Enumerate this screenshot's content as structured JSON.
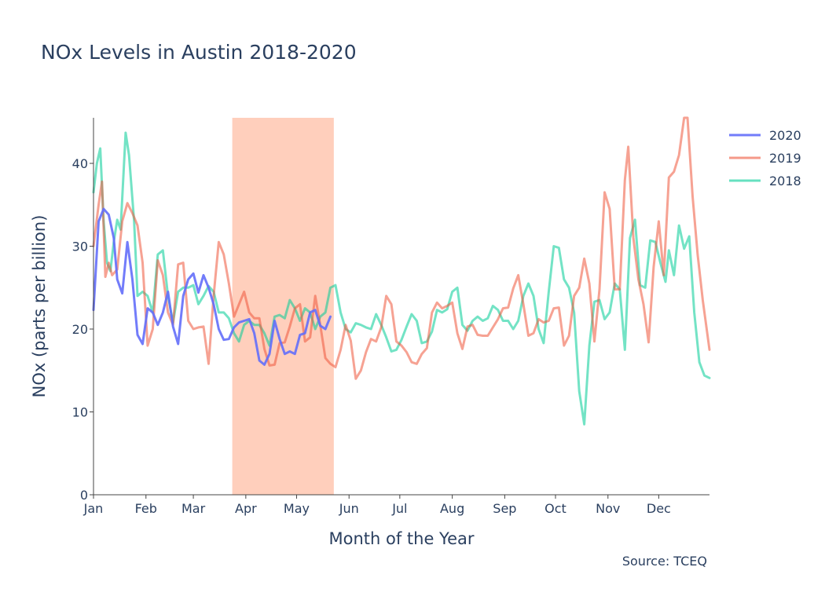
{
  "chart_data": {
    "type": "line",
    "title": "NOx Levels in Austin 2018-2020",
    "xlabel": "Month of the Year",
    "ylabel": "NOx (parts per billion)",
    "source": "Source: TCEQ",
    "x_unit": "day of year",
    "xlim": [
      1,
      365
    ],
    "ylim": [
      0,
      45.5
    ],
    "y_ticks": [
      0,
      10,
      20,
      30,
      40
    ],
    "x_ticks": [
      {
        "label": "Jan",
        "day": 1
      },
      {
        "label": "Feb",
        "day": 32
      },
      {
        "label": "Mar",
        "day": 60
      },
      {
        "label": "Apr",
        "day": 91
      },
      {
        "label": "May",
        "day": 121
      },
      {
        "label": "Jun",
        "day": 152
      },
      {
        "label": "Jul",
        "day": 182
      },
      {
        "label": "Aug",
        "day": 213
      },
      {
        "label": "Sep",
        "day": 244
      },
      {
        "label": "Oct",
        "day": 274
      },
      {
        "label": "Nov",
        "day": 305
      },
      {
        "label": "Dec",
        "day": 335
      }
    ],
    "highlight": {
      "from_day": 83,
      "to_day": 143,
      "color": "#FFA07A"
    },
    "legend_position": "top-right",
    "grid": false,
    "series": [
      {
        "name": "2020",
        "color": "#636EFA",
        "points": [
          [
            1,
            22.3
          ],
          [
            4,
            33.0
          ],
          [
            7,
            34.5
          ],
          [
            10,
            33.8
          ],
          [
            13,
            31.0
          ],
          [
            15,
            26.0
          ],
          [
            18,
            24.3
          ],
          [
            21,
            30.5
          ],
          [
            24,
            26.0
          ],
          [
            27,
            19.3
          ],
          [
            30,
            18.2
          ],
          [
            33,
            22.5
          ],
          [
            36,
            22.0
          ],
          [
            39,
            20.5
          ],
          [
            42,
            22.0
          ],
          [
            45,
            24.5
          ],
          [
            48,
            20.3
          ],
          [
            51,
            18.2
          ],
          [
            54,
            24.0
          ],
          [
            57,
            26.0
          ],
          [
            60,
            26.7
          ],
          [
            63,
            24.4
          ],
          [
            66,
            26.5
          ],
          [
            69,
            25.0
          ],
          [
            72,
            23.0
          ],
          [
            75,
            20.0
          ],
          [
            78,
            18.7
          ],
          [
            81,
            18.8
          ],
          [
            84,
            20.2
          ],
          [
            87,
            20.8
          ],
          [
            90,
            21.0
          ],
          [
            93,
            21.2
          ],
          [
            96,
            19.5
          ],
          [
            99,
            16.2
          ],
          [
            102,
            15.7
          ],
          [
            105,
            17.0
          ],
          [
            108,
            21.0
          ],
          [
            111,
            18.8
          ],
          [
            114,
            17.0
          ],
          [
            117,
            17.3
          ],
          [
            120,
            17.0
          ],
          [
            123,
            19.3
          ],
          [
            126,
            19.5
          ],
          [
            129,
            22.0
          ],
          [
            132,
            22.3
          ],
          [
            135,
            20.4
          ],
          [
            138,
            20.0
          ],
          [
            141,
            21.5
          ]
        ]
      },
      {
        "name": "2019",
        "color": "#EF553B",
        "points": [
          [
            1,
            30.0
          ],
          [
            4,
            35.0
          ],
          [
            6,
            37.8
          ],
          [
            8,
            26.3
          ],
          [
            10,
            28.0
          ],
          [
            12,
            26.5
          ],
          [
            15,
            27.2
          ],
          [
            18,
            33.0
          ],
          [
            21,
            35.2
          ],
          [
            24,
            34.0
          ],
          [
            27,
            32.5
          ],
          [
            30,
            28.0
          ],
          [
            33,
            18.0
          ],
          [
            36,
            20.0
          ],
          [
            39,
            28.3
          ],
          [
            42,
            26.5
          ],
          [
            45,
            22.0
          ],
          [
            48,
            20.5
          ],
          [
            51,
            27.8
          ],
          [
            54,
            28.0
          ],
          [
            57,
            21.0
          ],
          [
            60,
            20.0
          ],
          [
            63,
            20.2
          ],
          [
            66,
            20.3
          ],
          [
            69,
            15.8
          ],
          [
            72,
            24.0
          ],
          [
            75,
            30.5
          ],
          [
            78,
            29.0
          ],
          [
            81,
            25.5
          ],
          [
            84,
            21.5
          ],
          [
            87,
            23.0
          ],
          [
            90,
            24.5
          ],
          [
            93,
            22.0
          ],
          [
            96,
            21.3
          ],
          [
            99,
            21.3
          ],
          [
            102,
            17.6
          ],
          [
            105,
            15.6
          ],
          [
            108,
            15.7
          ],
          [
            111,
            18.3
          ],
          [
            114,
            18.4
          ],
          [
            117,
            20.3
          ],
          [
            120,
            22.5
          ],
          [
            123,
            23.0
          ],
          [
            126,
            18.5
          ],
          [
            129,
            19.0
          ],
          [
            132,
            24.0
          ],
          [
            135,
            20.5
          ],
          [
            138,
            16.5
          ],
          [
            141,
            15.8
          ],
          [
            144,
            15.4
          ],
          [
            147,
            17.5
          ],
          [
            150,
            20.5
          ],
          [
            153,
            18.6
          ],
          [
            156,
            14.0
          ],
          [
            159,
            15.0
          ],
          [
            162,
            17.2
          ],
          [
            165,
            18.8
          ],
          [
            168,
            18.5
          ],
          [
            171,
            20.2
          ],
          [
            174,
            24.0
          ],
          [
            177,
            23.0
          ],
          [
            180,
            18.5
          ],
          [
            183,
            18.0
          ],
          [
            186,
            17.2
          ],
          [
            189,
            16.0
          ],
          [
            192,
            15.8
          ],
          [
            195,
            17.0
          ],
          [
            198,
            17.7
          ],
          [
            201,
            22.0
          ],
          [
            204,
            23.2
          ],
          [
            207,
            22.5
          ],
          [
            210,
            22.8
          ],
          [
            213,
            23.2
          ],
          [
            216,
            19.5
          ],
          [
            219,
            17.6
          ],
          [
            222,
            20.3
          ],
          [
            225,
            20.5
          ],
          [
            228,
            19.3
          ],
          [
            231,
            19.2
          ],
          [
            234,
            19.2
          ],
          [
            237,
            20.2
          ],
          [
            240,
            21.2
          ],
          [
            243,
            22.5
          ],
          [
            246,
            22.6
          ],
          [
            249,
            24.9
          ],
          [
            252,
            26.5
          ],
          [
            255,
            23.0
          ],
          [
            258,
            19.2
          ],
          [
            261,
            19.5
          ],
          [
            264,
            21.2
          ],
          [
            267,
            20.8
          ],
          [
            270,
            21.0
          ],
          [
            273,
            22.5
          ],
          [
            276,
            22.6
          ],
          [
            279,
            18.0
          ],
          [
            282,
            19.2
          ],
          [
            285,
            24.0
          ],
          [
            288,
            25.0
          ],
          [
            291,
            28.5
          ],
          [
            294,
            25.5
          ],
          [
            297,
            18.5
          ],
          [
            300,
            24.8
          ],
          [
            303,
            36.5
          ],
          [
            306,
            34.5
          ],
          [
            309,
            24.8
          ],
          [
            312,
            24.8
          ],
          [
            315,
            38.0
          ],
          [
            317,
            42.0
          ],
          [
            320,
            31.0
          ],
          [
            323,
            26.0
          ],
          [
            326,
            23.0
          ],
          [
            329,
            18.4
          ],
          [
            332,
            27.5
          ],
          [
            335,
            33.0
          ],
          [
            338,
            26.5
          ],
          [
            341,
            38.3
          ],
          [
            344,
            39.0
          ],
          [
            347,
            41.0
          ],
          [
            350,
            45.5
          ],
          [
            352,
            45.5
          ],
          [
            355,
            36.0
          ],
          [
            358,
            29.0
          ],
          [
            361,
            23.5
          ],
          [
            365,
            17.5
          ]
        ]
      },
      {
        "name": "2018",
        "color": "#00CC96",
        "points": [
          [
            1,
            36.5
          ],
          [
            3,
            40.0
          ],
          [
            5,
            41.8
          ],
          [
            7,
            33.0
          ],
          [
            9,
            28.0
          ],
          [
            11,
            27.0
          ],
          [
            13,
            30.5
          ],
          [
            15,
            33.2
          ],
          [
            17,
            32.0
          ],
          [
            20,
            43.7
          ],
          [
            22,
            41.0
          ],
          [
            25,
            33.0
          ],
          [
            27,
            24.0
          ],
          [
            30,
            24.5
          ],
          [
            33,
            24.0
          ],
          [
            36,
            22.0
          ],
          [
            39,
            29.0
          ],
          [
            42,
            29.5
          ],
          [
            45,
            24.0
          ],
          [
            48,
            20.8
          ],
          [
            51,
            24.5
          ],
          [
            54,
            25.0
          ],
          [
            57,
            25.0
          ],
          [
            60,
            25.3
          ],
          [
            63,
            23.0
          ],
          [
            66,
            24.0
          ],
          [
            69,
            25.2
          ],
          [
            72,
            24.5
          ],
          [
            75,
            22.0
          ],
          [
            78,
            22.0
          ],
          [
            81,
            21.3
          ],
          [
            84,
            19.5
          ],
          [
            87,
            18.5
          ],
          [
            90,
            20.5
          ],
          [
            93,
            21.0
          ],
          [
            96,
            20.5
          ],
          [
            99,
            20.5
          ],
          [
            102,
            19.5
          ],
          [
            105,
            18.0
          ],
          [
            108,
            21.5
          ],
          [
            111,
            21.7
          ],
          [
            114,
            21.3
          ],
          [
            117,
            23.5
          ],
          [
            120,
            22.5
          ],
          [
            123,
            21.0
          ],
          [
            126,
            22.5
          ],
          [
            129,
            22.0
          ],
          [
            132,
            20.0
          ],
          [
            135,
            21.5
          ],
          [
            138,
            22.0
          ],
          [
            141,
            25.0
          ],
          [
            144,
            25.3
          ],
          [
            147,
            22.0
          ],
          [
            150,
            20.0
          ],
          [
            153,
            19.6
          ],
          [
            156,
            20.7
          ],
          [
            159,
            20.5
          ],
          [
            162,
            20.2
          ],
          [
            165,
            20.0
          ],
          [
            168,
            21.8
          ],
          [
            171,
            20.5
          ],
          [
            174,
            19.0
          ],
          [
            177,
            17.3
          ],
          [
            180,
            17.5
          ],
          [
            183,
            18.7
          ],
          [
            186,
            20.3
          ],
          [
            189,
            21.8
          ],
          [
            192,
            21.0
          ],
          [
            195,
            18.3
          ],
          [
            198,
            18.5
          ],
          [
            201,
            19.7
          ],
          [
            204,
            22.3
          ],
          [
            207,
            22.0
          ],
          [
            210,
            22.4
          ],
          [
            213,
            24.5
          ],
          [
            216,
            25.0
          ],
          [
            219,
            20.5
          ],
          [
            222,
            19.8
          ],
          [
            225,
            21.0
          ],
          [
            228,
            21.5
          ],
          [
            231,
            21.0
          ],
          [
            234,
            21.3
          ],
          [
            237,
            22.8
          ],
          [
            240,
            22.3
          ],
          [
            243,
            21.0
          ],
          [
            246,
            21.0
          ],
          [
            249,
            20.0
          ],
          [
            252,
            21.0
          ],
          [
            255,
            24.0
          ],
          [
            258,
            25.5
          ],
          [
            261,
            24.0
          ],
          [
            264,
            20.0
          ],
          [
            267,
            18.3
          ],
          [
            270,
            24.5
          ],
          [
            273,
            30.0
          ],
          [
            276,
            29.8
          ],
          [
            279,
            26.0
          ],
          [
            282,
            25.0
          ],
          [
            285,
            22.0
          ],
          [
            288,
            12.5
          ],
          [
            291,
            8.5
          ],
          [
            294,
            18.0
          ],
          [
            297,
            23.3
          ],
          [
            300,
            23.5
          ],
          [
            303,
            21.2
          ],
          [
            306,
            22.0
          ],
          [
            309,
            25.5
          ],
          [
            312,
            24.8
          ],
          [
            315,
            17.5
          ],
          [
            318,
            31.0
          ],
          [
            321,
            33.2
          ],
          [
            324,
            25.3
          ],
          [
            327,
            25.0
          ],
          [
            330,
            30.7
          ],
          [
            333,
            30.5
          ],
          [
            336,
            28.0
          ],
          [
            339,
            25.7
          ],
          [
            341,
            29.5
          ],
          [
            344,
            26.5
          ],
          [
            347,
            32.5
          ],
          [
            350,
            29.7
          ],
          [
            353,
            31.2
          ],
          [
            356,
            22.0
          ],
          [
            359,
            16.0
          ],
          [
            362,
            14.4
          ],
          [
            365,
            14.1
          ]
        ]
      }
    ]
  }
}
